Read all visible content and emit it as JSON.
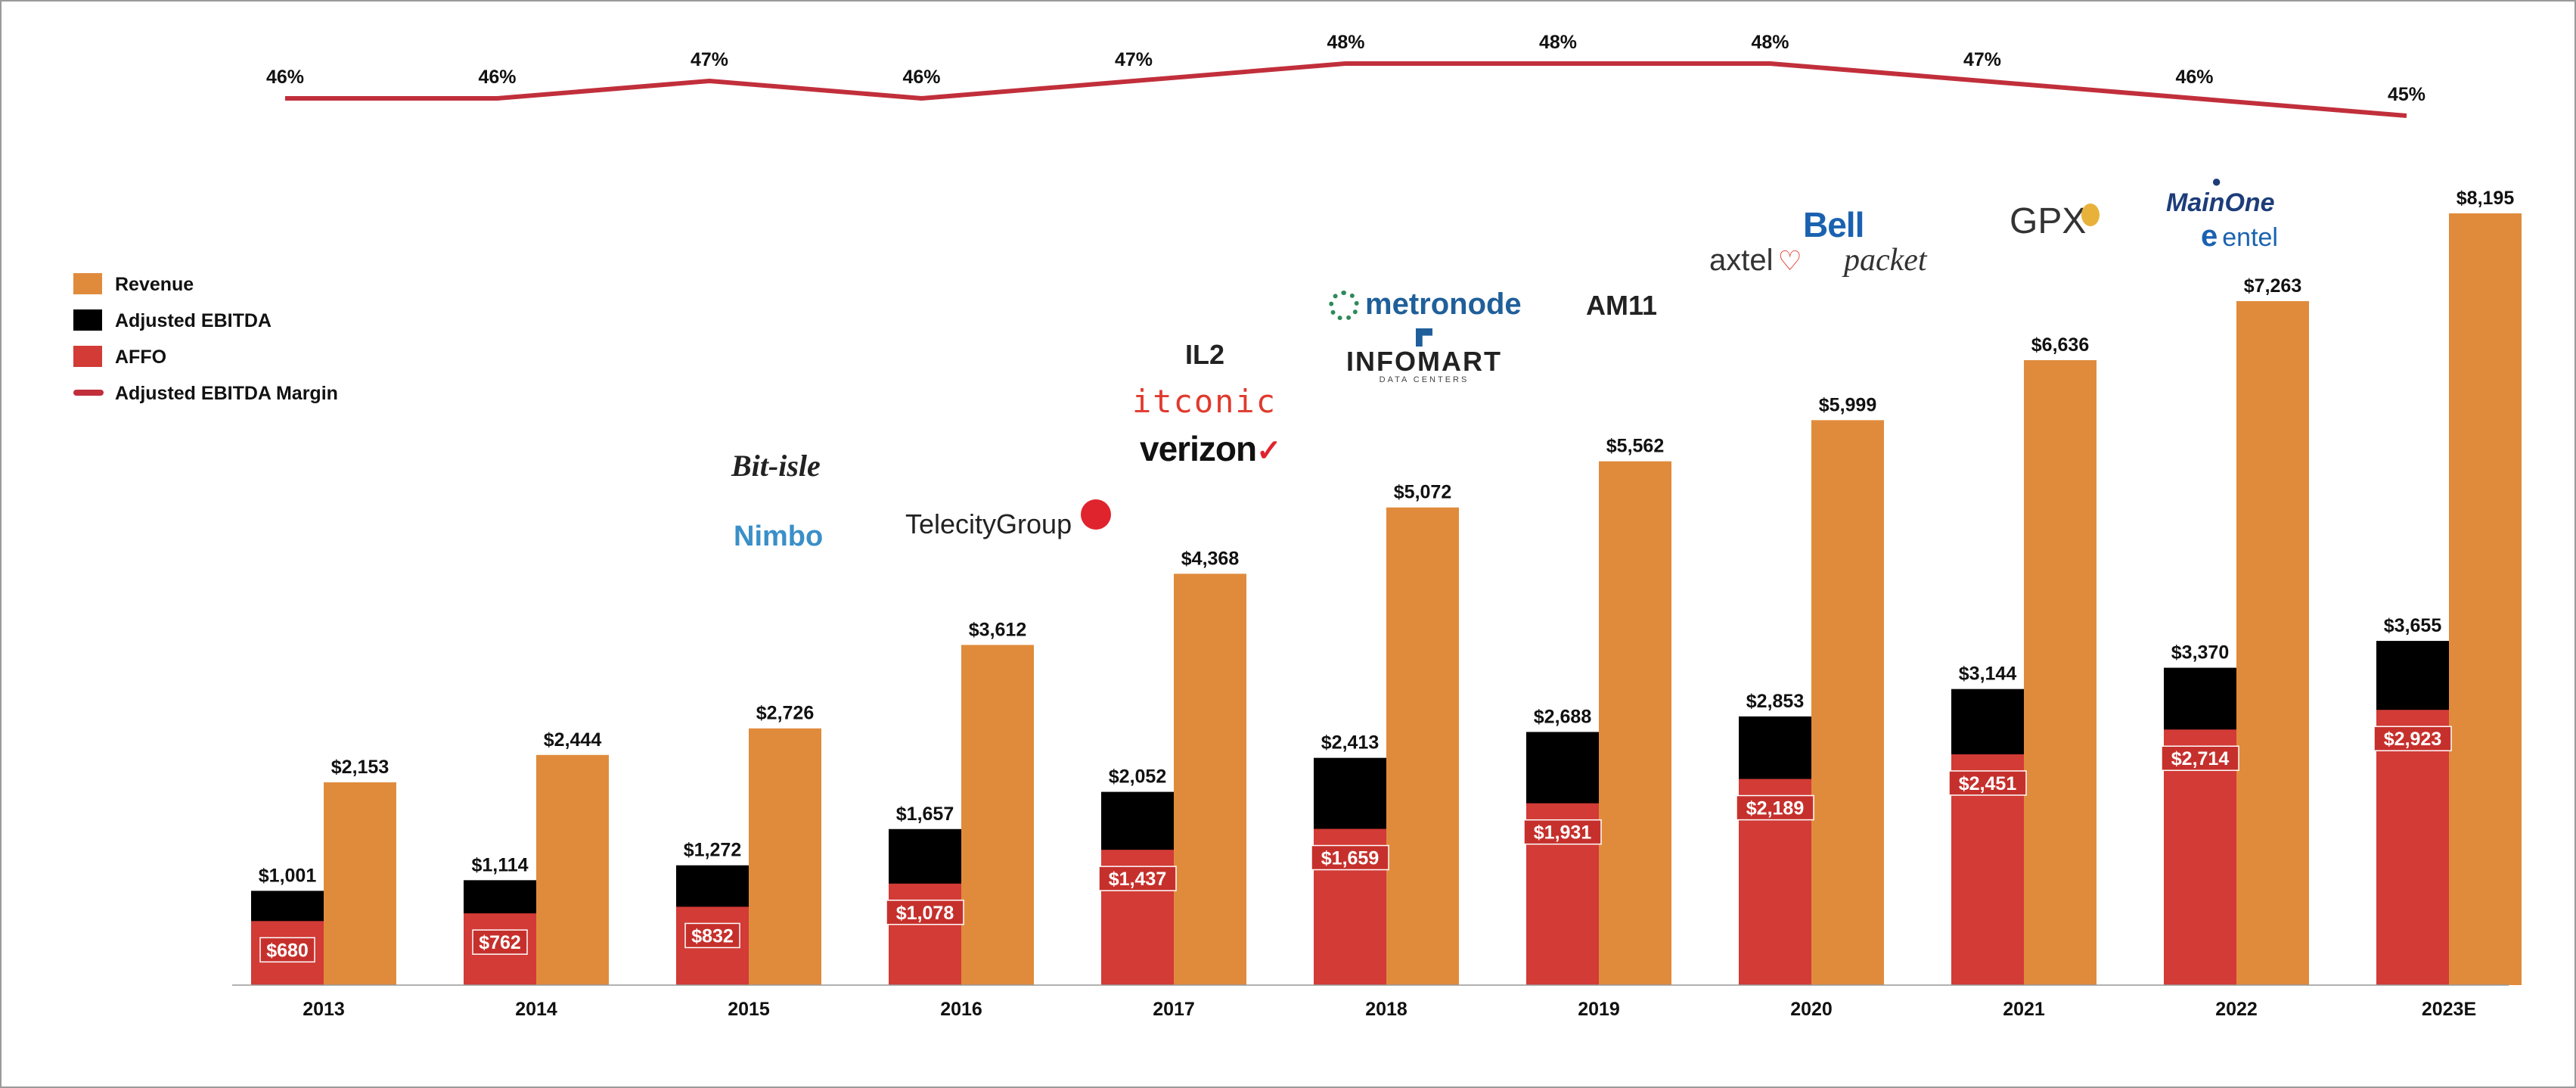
{
  "chart_data": {
    "type": "bar",
    "categories": [
      "2013",
      "2014",
      "2015",
      "2016",
      "2017",
      "2018",
      "2019",
      "2020",
      "2021",
      "2022",
      "2023E"
    ],
    "series": [
      {
        "name": "Revenue",
        "values": [
          2153,
          2444,
          2726,
          3612,
          4368,
          5072,
          5562,
          5999,
          6636,
          7263,
          8195
        ],
        "labels": [
          "$2,153",
          "$2,444",
          "$2,726",
          "$3,612",
          "$4,368",
          "$5,072",
          "$5,562",
          "$5,999",
          "$6,636",
          "$7,263",
          "$8,195"
        ]
      },
      {
        "name": "Adjusted EBITDA",
        "values": [
          1001,
          1114,
          1272,
          1657,
          2052,
          2413,
          2688,
          2853,
          3144,
          3370,
          3655
        ],
        "labels": [
          "$1,001",
          "$1,114",
          "$1,272",
          "$1,657",
          "$2,052",
          "$2,413",
          "$2,688",
          "$2,853",
          "$3,144",
          "$3,370",
          "$3,655"
        ]
      },
      {
        "name": "AFFO",
        "values": [
          680,
          762,
          832,
          1078,
          1437,
          1659,
          1931,
          2189,
          2451,
          2714,
          2923
        ],
        "labels": [
          "$680",
          "$762",
          "$832",
          "$1,078",
          "$1,437",
          "$1,659",
          "$1,931",
          "$2,189",
          "$2,451",
          "$2,714",
          "$2,923"
        ]
      },
      {
        "name": "Adjusted EBITDA Margin",
        "type": "line",
        "values": [
          46,
          46,
          47,
          46,
          47,
          48,
          48,
          48,
          47,
          46,
          45
        ],
        "labels": [
          "46%",
          "46%",
          "47%",
          "46%",
          "47%",
          "48%",
          "48%",
          "48%",
          "47%",
          "46%",
          "45%"
        ]
      }
    ],
    "legend": "left",
    "grid": false,
    "colors": {
      "revenue": "#e08b3c",
      "ebitda": "#000000",
      "affo": "#d23b36",
      "margin": "#c12f3b"
    }
  },
  "logos": {
    "bitisle": "Bit-isle",
    "nimbo": "Nimbo",
    "telecity": "TelecityGroup",
    "il2": "IL2",
    "itconic": "itconic",
    "verizon": "verizon",
    "metronode": "metronode",
    "infomart": "INFOMART",
    "infomart_sub": "DATA CENTERS",
    "am11": "AM11",
    "bell": "Bell",
    "axtel": "axtel",
    "packet": "packet",
    "gpx": "GPX",
    "mainone": "MainOne",
    "entel": "entel"
  },
  "colors": {
    "logo_dark": "#222222",
    "nimbo_blue": "#3a8fc8",
    "telecity_red": "#e0242d",
    "itconic_red": "#e03a2e",
    "metronode_green": "#2e8a5a",
    "metronode_blue": "#1f5f9a",
    "bell_blue": "#1a62b0",
    "mainone_navy": "#1d3d7a",
    "entel_blue": "#1a62b0"
  }
}
